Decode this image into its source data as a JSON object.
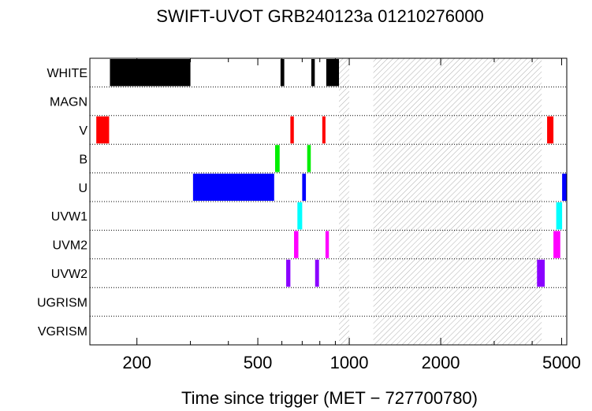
{
  "chart_data": {
    "type": "timeline",
    "title": "SWIFT-UVOT GRB240123a 01210276000",
    "xlabel": "Time since trigger (MET − 727700780)",
    "x_scale": "log",
    "xlim": [
      140,
      5200
    ],
    "x_ticks": [
      200,
      500,
      1000,
      2000,
      5000
    ],
    "x_tick_labels": [
      "200",
      "500",
      "1000",
      "2000",
      "5000"
    ],
    "filters": [
      "WHITE",
      "MAGN",
      "V",
      "B",
      "U",
      "UVW1",
      "UVM2",
      "UVW2",
      "UGRISM",
      "VGRISM"
    ],
    "filter_colors": {
      "WHITE": "#000000",
      "V": "#ff0000",
      "B": "#00ee00",
      "U": "#0000ff",
      "UVW1": "#00ffff",
      "UVM2": "#ff00ff",
      "UVW2": "#8a00ff"
    },
    "exposures": [
      {
        "filter": "WHITE",
        "start": 163,
        "end": 300
      },
      {
        "filter": "WHITE",
        "start": 594,
        "end": 611
      },
      {
        "filter": "WHITE",
        "start": 750,
        "end": 770
      },
      {
        "filter": "WHITE",
        "start": 840,
        "end": 925
      },
      {
        "filter": "V",
        "start": 147,
        "end": 162
      },
      {
        "filter": "V",
        "start": 640,
        "end": 657
      },
      {
        "filter": "V",
        "start": 815,
        "end": 835
      },
      {
        "filter": "V",
        "start": 4480,
        "end": 4700
      },
      {
        "filter": "B",
        "start": 570,
        "end": 590
      },
      {
        "filter": "B",
        "start": 727,
        "end": 747
      },
      {
        "filter": "U",
        "start": 306,
        "end": 566
      },
      {
        "filter": "U",
        "start": 700,
        "end": 720
      },
      {
        "filter": "U",
        "start": 5020,
        "end": 5200
      },
      {
        "filter": "UVW1",
        "start": 675,
        "end": 700
      },
      {
        "filter": "UVW1",
        "start": 4800,
        "end": 5020
      },
      {
        "filter": "UVM2",
        "start": 658,
        "end": 680
      },
      {
        "filter": "UVM2",
        "start": 835,
        "end": 857
      },
      {
        "filter": "UVM2",
        "start": 4700,
        "end": 4950
      },
      {
        "filter": "UVW2",
        "start": 620,
        "end": 640
      },
      {
        "filter": "UVW2",
        "start": 772,
        "end": 795
      },
      {
        "filter": "UVW2",
        "start": 4150,
        "end": 4400
      }
    ],
    "gaps": [
      {
        "start": 925,
        "end": 1000
      },
      {
        "start": 1200,
        "end": 4300
      }
    ]
  }
}
